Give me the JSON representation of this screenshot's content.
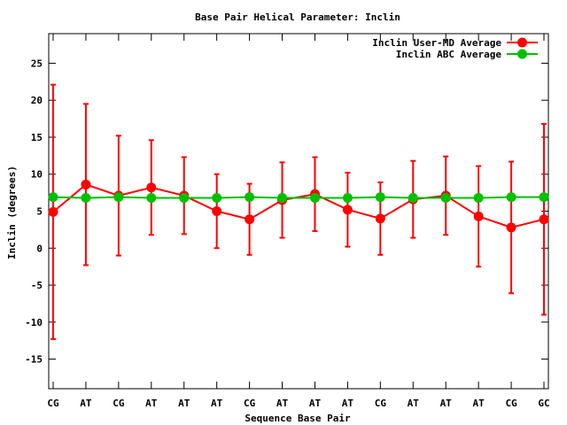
{
  "chart_data": {
    "type": "line",
    "title": "Base Pair Helical Parameter: Inclin",
    "xlabel": "Sequence Base Pair",
    "ylabel": "Inclin (degrees)",
    "categories": [
      "CG",
      "AT",
      "CG",
      "AT",
      "AT",
      "AT",
      "CG",
      "AT",
      "AT",
      "AT",
      "CG",
      "AT",
      "AT",
      "AT",
      "CG",
      "GC"
    ],
    "ylim": [
      -19,
      29
    ],
    "yticks": [
      -15,
      -10,
      -5,
      0,
      5,
      10,
      15,
      20,
      25
    ],
    "grid": false,
    "legend_position": "top-right",
    "series": [
      {
        "name": "Inclin User-MD Average",
        "color": "#ff0000",
        "values": [
          4.9,
          8.6,
          7.1,
          8.2,
          7.1,
          5.0,
          3.9,
          6.5,
          7.3,
          5.2,
          4.0,
          6.6,
          7.1,
          4.3,
          2.8,
          3.9
        ],
        "error": [
          17.2,
          10.9,
          8.1,
          6.4,
          5.2,
          5.0,
          4.8,
          5.1,
          5.0,
          5.0,
          4.9,
          5.2,
          5.3,
          6.8,
          8.9,
          12.9
        ]
      },
      {
        "name": "Inclin ABC Average",
        "color": "#00c000",
        "values": [
          6.9,
          6.8,
          6.9,
          6.8,
          6.8,
          6.8,
          6.9,
          6.8,
          6.8,
          6.8,
          6.9,
          6.8,
          6.8,
          6.8,
          6.9,
          6.9
        ]
      }
    ]
  }
}
